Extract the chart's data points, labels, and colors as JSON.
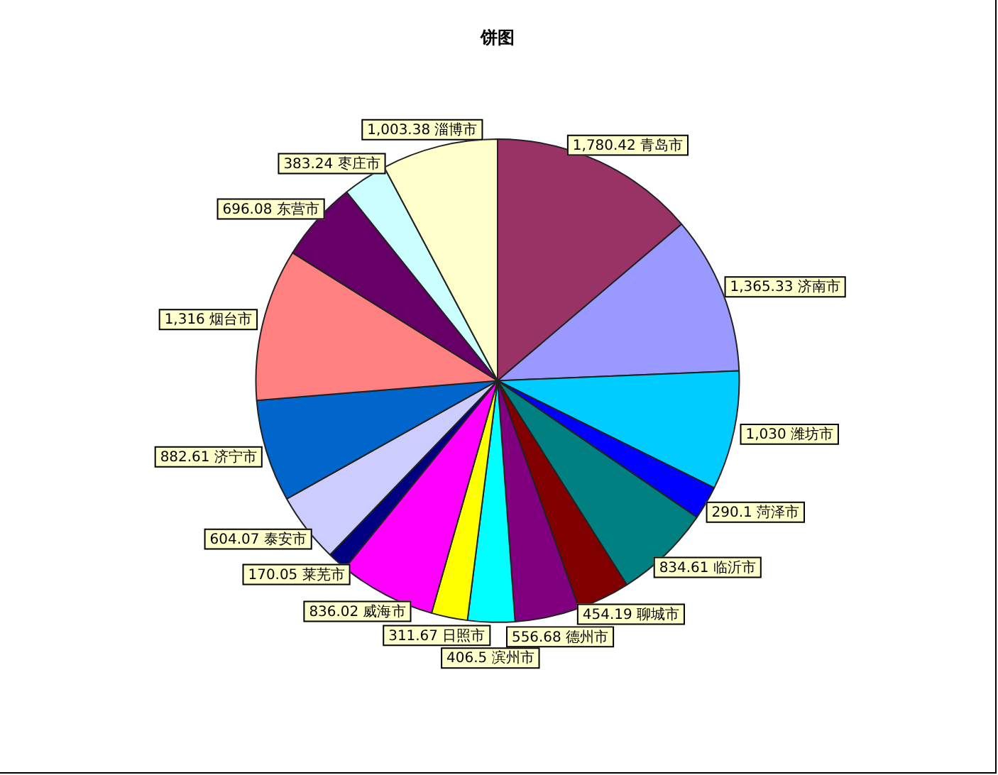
{
  "chart_data": {
    "type": "pie",
    "title": "饼图",
    "categories": [
      "青岛市",
      "济南市",
      "潍坊市",
      "菏泽市",
      "临沂市",
      "聊城市",
      "德州市",
      "滨州市",
      "日照市",
      "威海市",
      "莱芜市",
      "泰安市",
      "济宁市",
      "烟台市",
      "东营市",
      "枣庄市",
      "淄博市"
    ],
    "values": [
      1780.42,
      1365.33,
      1030,
      290.1,
      834.61,
      454.19,
      556.68,
      406.5,
      311.67,
      836.02,
      170.05,
      604.07,
      882.61,
      1316,
      696.08,
      383.24,
      1003.38
    ],
    "value_labels": [
      "1,780.42",
      "1,365.33",
      "1,030",
      "290.1",
      "834.61",
      "454.19",
      "556.68",
      "406.5",
      "311.67",
      "836.02",
      "170.05",
      "604.07",
      "882.61",
      "1,316",
      "696.08",
      "383.24",
      "1,003.38"
    ],
    "colors": [
      "#993366",
      "#9999ff",
      "#00ccff",
      "#0000ff",
      "#008080",
      "#800000",
      "#800080",
      "#00ffff",
      "#ffff00",
      "#ff00ff",
      "#000080",
      "#ccccff",
      "#0066cc",
      "#ff8080",
      "#660066",
      "#ccffff",
      "#ffffcc"
    ]
  }
}
